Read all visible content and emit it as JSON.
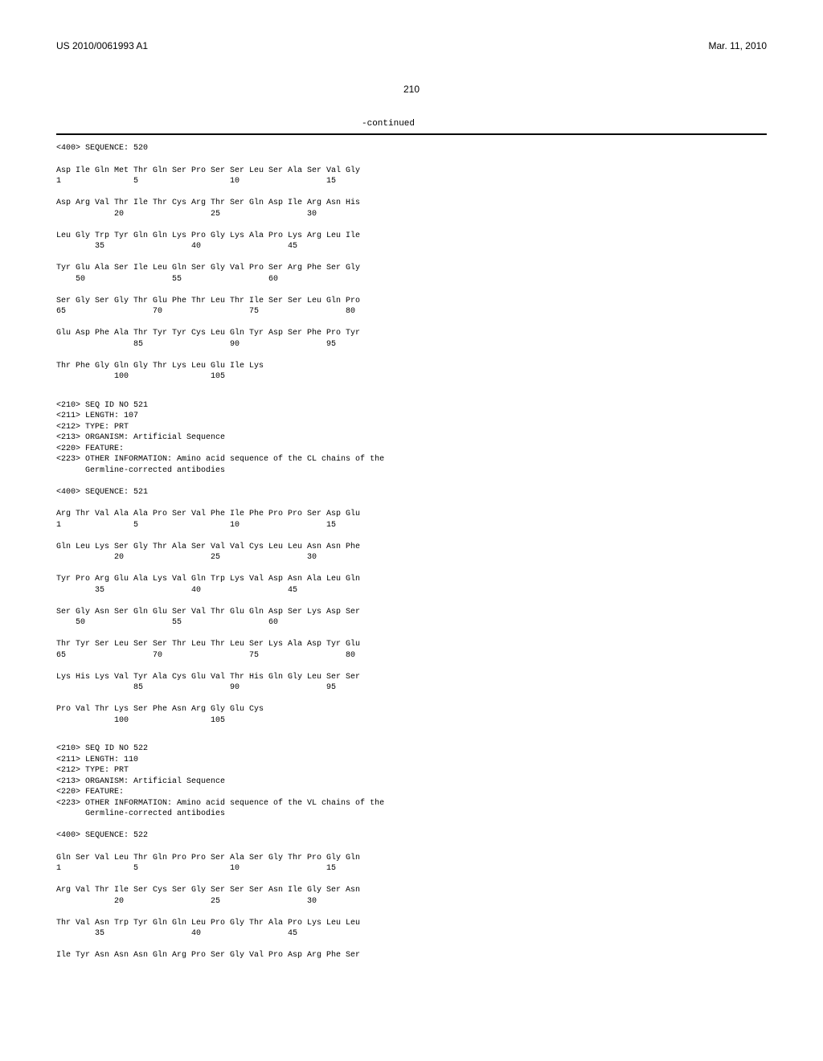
{
  "header": {
    "pub_number": "US 2010/0061993 A1",
    "pub_date": "Mar. 11, 2010"
  },
  "page_number": "210",
  "continued_label": "-continued",
  "blocks": [
    {
      "type": "meta",
      "text": "<400> SEQUENCE: 520"
    },
    {
      "type": "seq",
      "text": "Asp Ile Gln Met Thr Gln Ser Pro Ser Ser Leu Ser Ala Ser Val Gly\n1               5                   10                  15\n\nAsp Arg Val Thr Ile Thr Cys Arg Thr Ser Gln Asp Ile Arg Asn His\n            20                  25                  30\n\nLeu Gly Trp Tyr Gln Gln Lys Pro Gly Lys Ala Pro Lys Arg Leu Ile\n        35                  40                  45\n\nTyr Glu Ala Ser Ile Leu Gln Ser Gly Val Pro Ser Arg Phe Ser Gly\n    50                  55                  60\n\nSer Gly Ser Gly Thr Glu Phe Thr Leu Thr Ile Ser Ser Leu Gln Pro\n65                  70                  75                  80\n\nGlu Asp Phe Ala Thr Tyr Tyr Cys Leu Gln Tyr Asp Ser Phe Pro Tyr\n                85                  90                  95\n\nThr Phe Gly Gln Gly Thr Lys Leu Glu Ile Lys\n            100                 105"
    },
    {
      "type": "meta",
      "text": "<210> SEQ ID NO 521\n<211> LENGTH: 107\n<212> TYPE: PRT\n<213> ORGANISM: Artificial Sequence\n<220> FEATURE:\n<223> OTHER INFORMATION: Amino acid sequence of the CL chains of the\n      Germline-corrected antibodies\n\n<400> SEQUENCE: 521"
    },
    {
      "type": "seq",
      "text": "Arg Thr Val Ala Ala Pro Ser Val Phe Ile Phe Pro Pro Ser Asp Glu\n1               5                   10                  15\n\nGln Leu Lys Ser Gly Thr Ala Ser Val Val Cys Leu Leu Asn Asn Phe\n            20                  25                  30\n\nTyr Pro Arg Glu Ala Lys Val Gln Trp Lys Val Asp Asn Ala Leu Gln\n        35                  40                  45\n\nSer Gly Asn Ser Gln Glu Ser Val Thr Glu Gln Asp Ser Lys Asp Ser\n    50                  55                  60\n\nThr Tyr Ser Leu Ser Ser Thr Leu Thr Leu Ser Lys Ala Asp Tyr Glu\n65                  70                  75                  80\n\nLys His Lys Val Tyr Ala Cys Glu Val Thr His Gln Gly Leu Ser Ser\n                85                  90                  95\n\nPro Val Thr Lys Ser Phe Asn Arg Gly Glu Cys\n            100                 105"
    },
    {
      "type": "meta",
      "text": "<210> SEQ ID NO 522\n<211> LENGTH: 110\n<212> TYPE: PRT\n<213> ORGANISM: Artificial Sequence\n<220> FEATURE:\n<223> OTHER INFORMATION: Amino acid sequence of the VL chains of the\n      Germline-corrected antibodies\n\n<400> SEQUENCE: 522"
    },
    {
      "type": "seq",
      "text": "Gln Ser Val Leu Thr Gln Pro Pro Ser Ala Ser Gly Thr Pro Gly Gln\n1               5                   10                  15\n\nArg Val Thr Ile Ser Cys Ser Gly Ser Ser Ser Asn Ile Gly Ser Asn\n            20                  25                  30\n\nThr Val Asn Trp Tyr Gln Gln Leu Pro Gly Thr Ala Pro Lys Leu Leu\n        35                  40                  45\n\nIle Tyr Asn Asn Asn Gln Arg Pro Ser Gly Val Pro Asp Arg Phe Ser"
    }
  ]
}
